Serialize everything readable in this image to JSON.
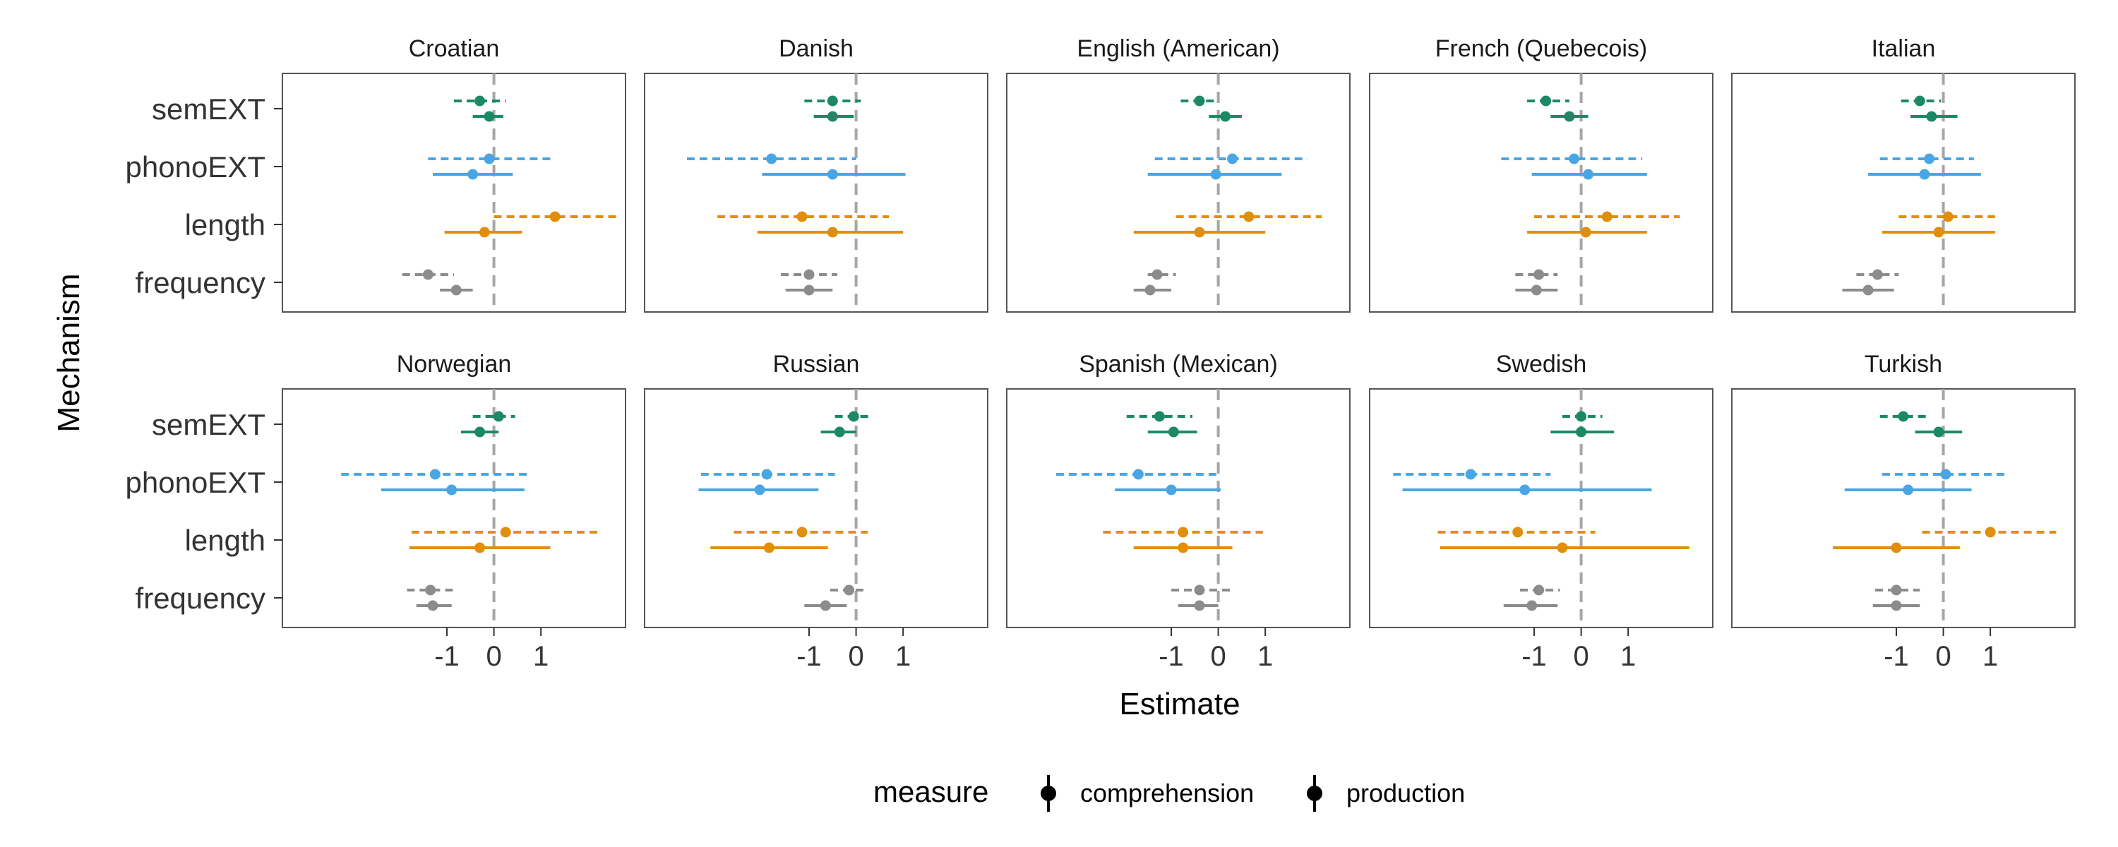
{
  "chart_data": {
    "type": "scatter",
    "subtype": "dot-and-whisker (point estimates with intervals), faceted",
    "xlabel": "Estimate",
    "ylabel": "Mechanism",
    "x_ticks": [
      "-1",
      "0",
      "1"
    ],
    "xlim": [
      -4.5,
      2.8
    ],
    "reference_line": {
      "x": 0,
      "style": "dashed",
      "color": "#a6a6a6"
    },
    "y_categories": [
      "semEXT",
      "phonoEXT",
      "length",
      "frequency"
    ],
    "grid": false,
    "colors": {
      "semEXT": "#1b8a63",
      "phonoEXT": "#4aa6e3",
      "length": "#e08f0d",
      "frequency": "#8c8c8c"
    },
    "legend": {
      "title": "measure",
      "position": "bottom",
      "items": [
        {
          "label": "comprehension",
          "linestyle": "dashed"
        },
        {
          "label": "production",
          "linestyle": "solid"
        }
      ]
    },
    "facets": [
      {
        "title": "Croatian",
        "data": {
          "semEXT": {
            "comprehension": [
              -0.3,
              -0.85,
              0.25
            ],
            "production": [
              -0.1,
              -0.45,
              0.2
            ]
          },
          "phonoEXT": {
            "comprehension": [
              -0.1,
              -1.4,
              1.2
            ],
            "production": [
              -0.45,
              -1.3,
              0.4
            ]
          },
          "length": {
            "comprehension": [
              1.3,
              0.0,
              2.6
            ],
            "production": [
              -0.2,
              -1.05,
              0.6
            ]
          },
          "frequency": {
            "comprehension": [
              -1.4,
              -1.95,
              -0.85
            ],
            "production": [
              -0.8,
              -1.15,
              -0.45
            ]
          }
        }
      },
      {
        "title": "Danish",
        "data": {
          "semEXT": {
            "comprehension": [
              -0.5,
              -1.1,
              0.1
            ],
            "production": [
              -0.5,
              -0.9,
              -0.05
            ]
          },
          "phonoEXT": {
            "comprehension": [
              -1.8,
              -3.6,
              0.0
            ],
            "production": [
              -0.5,
              -2.0,
              1.05
            ]
          },
          "length": {
            "comprehension": [
              -1.15,
              -2.95,
              0.7
            ],
            "production": [
              -0.5,
              -2.1,
              1.0
            ]
          },
          "frequency": {
            "comprehension": [
              -1.0,
              -1.6,
              -0.4
            ],
            "production": [
              -1.0,
              -1.5,
              -0.5
            ]
          }
        }
      },
      {
        "title": "English (American)",
        "data": {
          "semEXT": {
            "comprehension": [
              -0.4,
              -0.8,
              0.0
            ],
            "production": [
              0.15,
              -0.2,
              0.5
            ]
          },
          "phonoEXT": {
            "comprehension": [
              0.3,
              -1.35,
              1.9
            ],
            "production": [
              -0.05,
              -1.5,
              1.35
            ]
          },
          "length": {
            "comprehension": [
              0.65,
              -0.9,
              2.2
            ],
            "production": [
              -0.4,
              -1.8,
              1.0
            ]
          },
          "frequency": {
            "comprehension": [
              -1.3,
              -1.5,
              -0.9
            ],
            "production": [
              -1.45,
              -1.8,
              -1.0
            ]
          }
        }
      },
      {
        "title": "French (Quebecois)",
        "data": {
          "semEXT": {
            "comprehension": [
              -0.75,
              -1.15,
              -0.25
            ],
            "production": [
              -0.25,
              -0.65,
              0.15
            ]
          },
          "phonoEXT": {
            "comprehension": [
              -0.15,
              -1.7,
              1.3
            ],
            "production": [
              0.15,
              -1.05,
              1.4
            ]
          },
          "length": {
            "comprehension": [
              0.55,
              -1.0,
              2.1
            ],
            "production": [
              0.1,
              -1.15,
              1.4
            ]
          },
          "frequency": {
            "comprehension": [
              -0.9,
              -1.4,
              -0.5
            ],
            "production": [
              -0.95,
              -1.4,
              -0.5
            ]
          }
        }
      },
      {
        "title": "Italian",
        "data": {
          "semEXT": {
            "comprehension": [
              -0.5,
              -0.9,
              -0.05
            ],
            "production": [
              -0.25,
              -0.7,
              0.3
            ]
          },
          "phonoEXT": {
            "comprehension": [
              -0.3,
              -1.35,
              0.65
            ],
            "production": [
              -0.4,
              -1.6,
              0.8
            ]
          },
          "length": {
            "comprehension": [
              0.1,
              -0.95,
              1.1
            ],
            "production": [
              -0.1,
              -1.3,
              1.1
            ]
          },
          "frequency": {
            "comprehension": [
              -1.4,
              -1.85,
              -0.95
            ],
            "production": [
              -1.6,
              -2.15,
              -1.05
            ]
          }
        }
      },
      {
        "title": "Norwegian",
        "data": {
          "semEXT": {
            "comprehension": [
              0.1,
              -0.45,
              0.45
            ],
            "production": [
              -0.3,
              -0.7,
              0.1
            ]
          },
          "phonoEXT": {
            "comprehension": [
              -1.25,
              -3.25,
              0.7
            ],
            "production": [
              -0.9,
              -2.4,
              0.65
            ]
          },
          "length": {
            "comprehension": [
              0.25,
              -1.75,
              2.2
            ],
            "production": [
              -0.3,
              -1.8,
              1.2
            ]
          },
          "frequency": {
            "comprehension": [
              -1.35,
              -1.85,
              -0.85
            ],
            "production": [
              -1.3,
              -1.65,
              -0.9
            ]
          }
        }
      },
      {
        "title": "Russian",
        "data": {
          "semEXT": {
            "comprehension": [
              -0.05,
              -0.45,
              0.35
            ],
            "production": [
              -0.35,
              -0.75,
              0.0
            ]
          },
          "phonoEXT": {
            "comprehension": [
              -1.9,
              -3.3,
              -0.45
            ],
            "production": [
              -2.05,
              -3.35,
              -0.8
            ]
          },
          "length": {
            "comprehension": [
              -1.15,
              -2.6,
              0.25
            ],
            "production": [
              -1.85,
              -3.1,
              -0.6
            ]
          },
          "frequency": {
            "comprehension": [
              -0.15,
              -0.55,
              0.25
            ],
            "production": [
              -0.65,
              -1.1,
              -0.2
            ]
          }
        }
      },
      {
        "title": "Spanish (Mexican)",
        "data": {
          "semEXT": {
            "comprehension": [
              -1.25,
              -1.95,
              -0.55
            ],
            "production": [
              -0.95,
              -1.5,
              -0.45
            ]
          },
          "phonoEXT": {
            "comprehension": [
              -1.7,
              -3.45,
              0.0
            ],
            "production": [
              -1.0,
              -2.2,
              0.05
            ]
          },
          "length": {
            "comprehension": [
              -0.75,
              -2.45,
              0.95
            ],
            "production": [
              -0.75,
              -1.8,
              0.3
            ]
          },
          "frequency": {
            "comprehension": [
              -0.4,
              -1.0,
              0.3
            ],
            "production": [
              -0.4,
              -0.85,
              0.0
            ]
          }
        }
      },
      {
        "title": "Swedish",
        "data": {
          "semEXT": {
            "comprehension": [
              0.0,
              -0.4,
              0.45
            ],
            "production": [
              0.0,
              -0.65,
              0.7
            ]
          },
          "phonoEXT": {
            "comprehension": [
              -2.35,
              -4.0,
              -0.65
            ],
            "production": [
              -1.2,
              -3.8,
              1.5
            ]
          },
          "length": {
            "comprehension": [
              -1.35,
              -3.05,
              0.3
            ],
            "production": [
              -0.4,
              -3.0,
              2.3
            ]
          },
          "frequency": {
            "comprehension": [
              -0.9,
              -1.3,
              -0.45
            ],
            "production": [
              -1.05,
              -1.65,
              -0.5
            ]
          }
        }
      },
      {
        "title": "Turkish",
        "data": {
          "semEXT": {
            "comprehension": [
              -0.85,
              -1.35,
              -0.35
            ],
            "production": [
              -0.1,
              -0.6,
              0.4
            ]
          },
          "phonoEXT": {
            "comprehension": [
              0.05,
              -1.3,
              1.35
            ],
            "production": [
              -0.75,
              -2.1,
              0.6
            ]
          },
          "length": {
            "comprehension": [
              1.0,
              -0.45,
              2.4
            ],
            "production": [
              -1.0,
              -2.35,
              0.35
            ]
          },
          "frequency": {
            "comprehension": [
              -1.0,
              -1.45,
              -0.5
            ],
            "production": [
              -1.0,
              -1.5,
              -0.5
            ]
          }
        }
      }
    ]
  }
}
